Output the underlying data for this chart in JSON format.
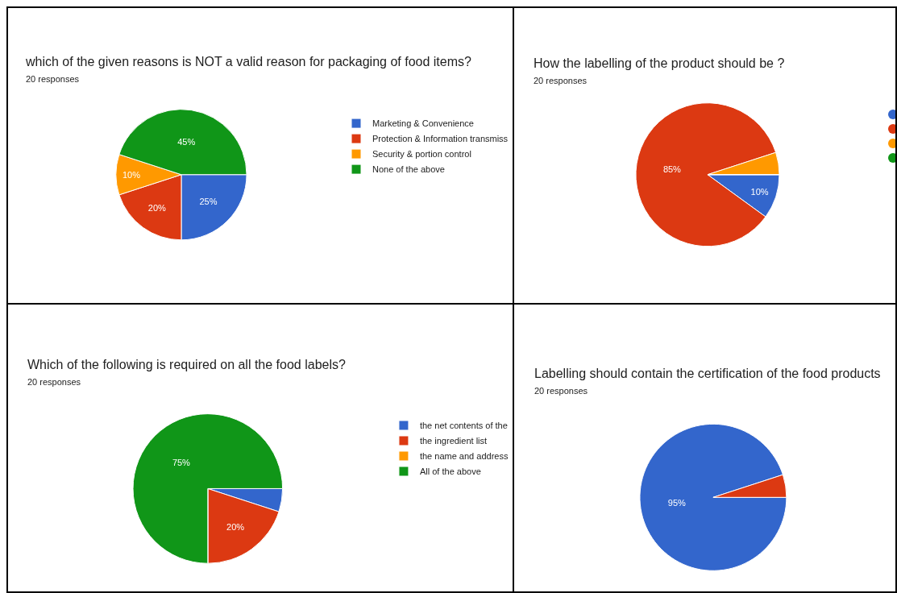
{
  "chart_data": [
    {
      "type": "pie",
      "title": "which of the given reasons is NOT  a valid reason for packaging of food items?",
      "subtitle": "20 responses",
      "categories": [
        "Marketing & Convenience",
        "Protection & Information transmiss",
        "Security & portion control",
        "None of the above"
      ],
      "values": [
        25,
        20,
        10,
        45
      ],
      "value_labels": [
        "25%",
        "20%",
        "10%",
        "45%"
      ],
      "colors": [
        "#3366cc",
        "#dc3912",
        "#ff9900",
        "#109618"
      ],
      "legend": "right"
    },
    {
      "type": "pie",
      "title": "How the labelling of the product should be ?",
      "subtitle": "20 responses",
      "categories": [
        null,
        null,
        null,
        null
      ],
      "values": [
        10,
        85,
        5,
        0
      ],
      "value_labels": [
        "10%",
        "85%",
        null,
        null
      ],
      "colors": [
        "#3366cc",
        "#dc3912",
        "#ff9900",
        "#109618"
      ]
    },
    {
      "type": "pie",
      "title": "Which of the following is required on all the food labels?",
      "subtitle": "20 responses",
      "categories": [
        "the net contents of the",
        "the ingredient list",
        "the name and address",
        "All of the above"
      ],
      "values": [
        5,
        20,
        0,
        75
      ],
      "value_labels": [
        null,
        "20%",
        null,
        "75%"
      ],
      "colors": [
        "#3366cc",
        "#dc3912",
        "#ff9900",
        "#109618"
      ],
      "legend": "right"
    },
    {
      "type": "pie",
      "title": "Labelling should contain the certification of the food products",
      "subtitle": "20 responses",
      "categories": [
        null,
        null
      ],
      "values": [
        95,
        5
      ],
      "value_labels": [
        "95%",
        null
      ],
      "colors": [
        "#3366cc",
        "#dc3912"
      ]
    }
  ]
}
